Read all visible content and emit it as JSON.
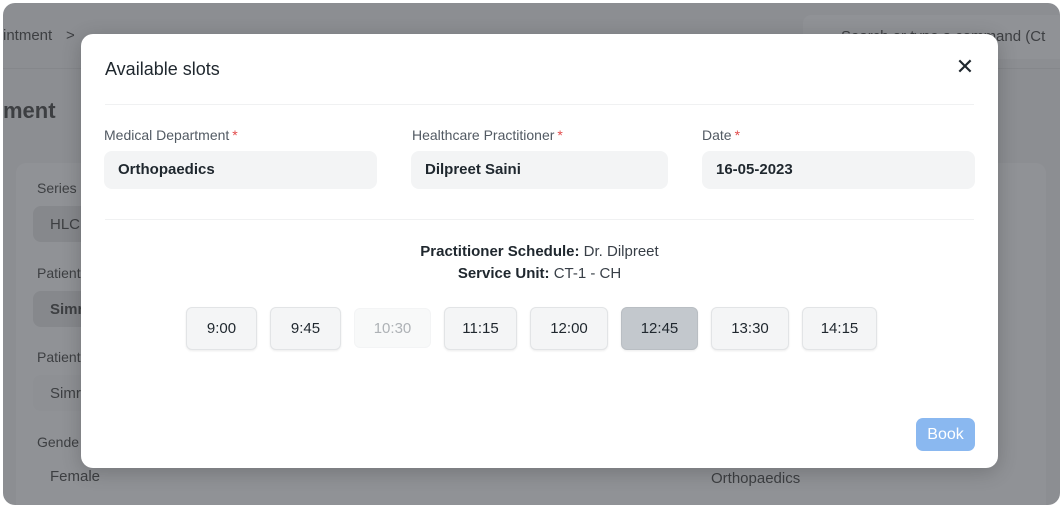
{
  "background": {
    "breadcrumb": [
      "intment",
      ">"
    ],
    "search_placeholder": "Search or type a command (Ct",
    "page_title": "ment",
    "fields": [
      {
        "label": "Series",
        "value": "HLC"
      },
      {
        "label": "Patient",
        "value": "Simr"
      },
      {
        "label": "Patient",
        "value": "Simr"
      },
      {
        "label": "Gende",
        "value": "Female"
      }
    ],
    "right_value": "Orthopaedics"
  },
  "modal": {
    "title": "Available slots",
    "close_icon": "close-icon",
    "fields": [
      {
        "label": "Medical Department",
        "required": "*",
        "value": "Orthopaedics"
      },
      {
        "label": "Healthcare Practitioner",
        "required": "*",
        "value": "Dilpreet Saini"
      },
      {
        "label": "Date",
        "required": "*",
        "value": "16-05-2023"
      }
    ],
    "schedule_label": "Practitioner Schedule:",
    "schedule_value": "Dr. Dilpreet",
    "service_unit_label": "Service Unit:",
    "service_unit_value": "CT-1 - CH",
    "slots": [
      {
        "time": "9:00",
        "state": "available"
      },
      {
        "time": "9:45",
        "state": "available"
      },
      {
        "time": "10:30",
        "state": "disabled"
      },
      {
        "time": "11:15",
        "state": "available"
      },
      {
        "time": "12:00",
        "state": "available"
      },
      {
        "time": "12:45",
        "state": "selected"
      },
      {
        "time": "13:30",
        "state": "available"
      },
      {
        "time": "14:15",
        "state": "available"
      }
    ],
    "book_label": "Book",
    "book_color": "#8ab8f0"
  }
}
